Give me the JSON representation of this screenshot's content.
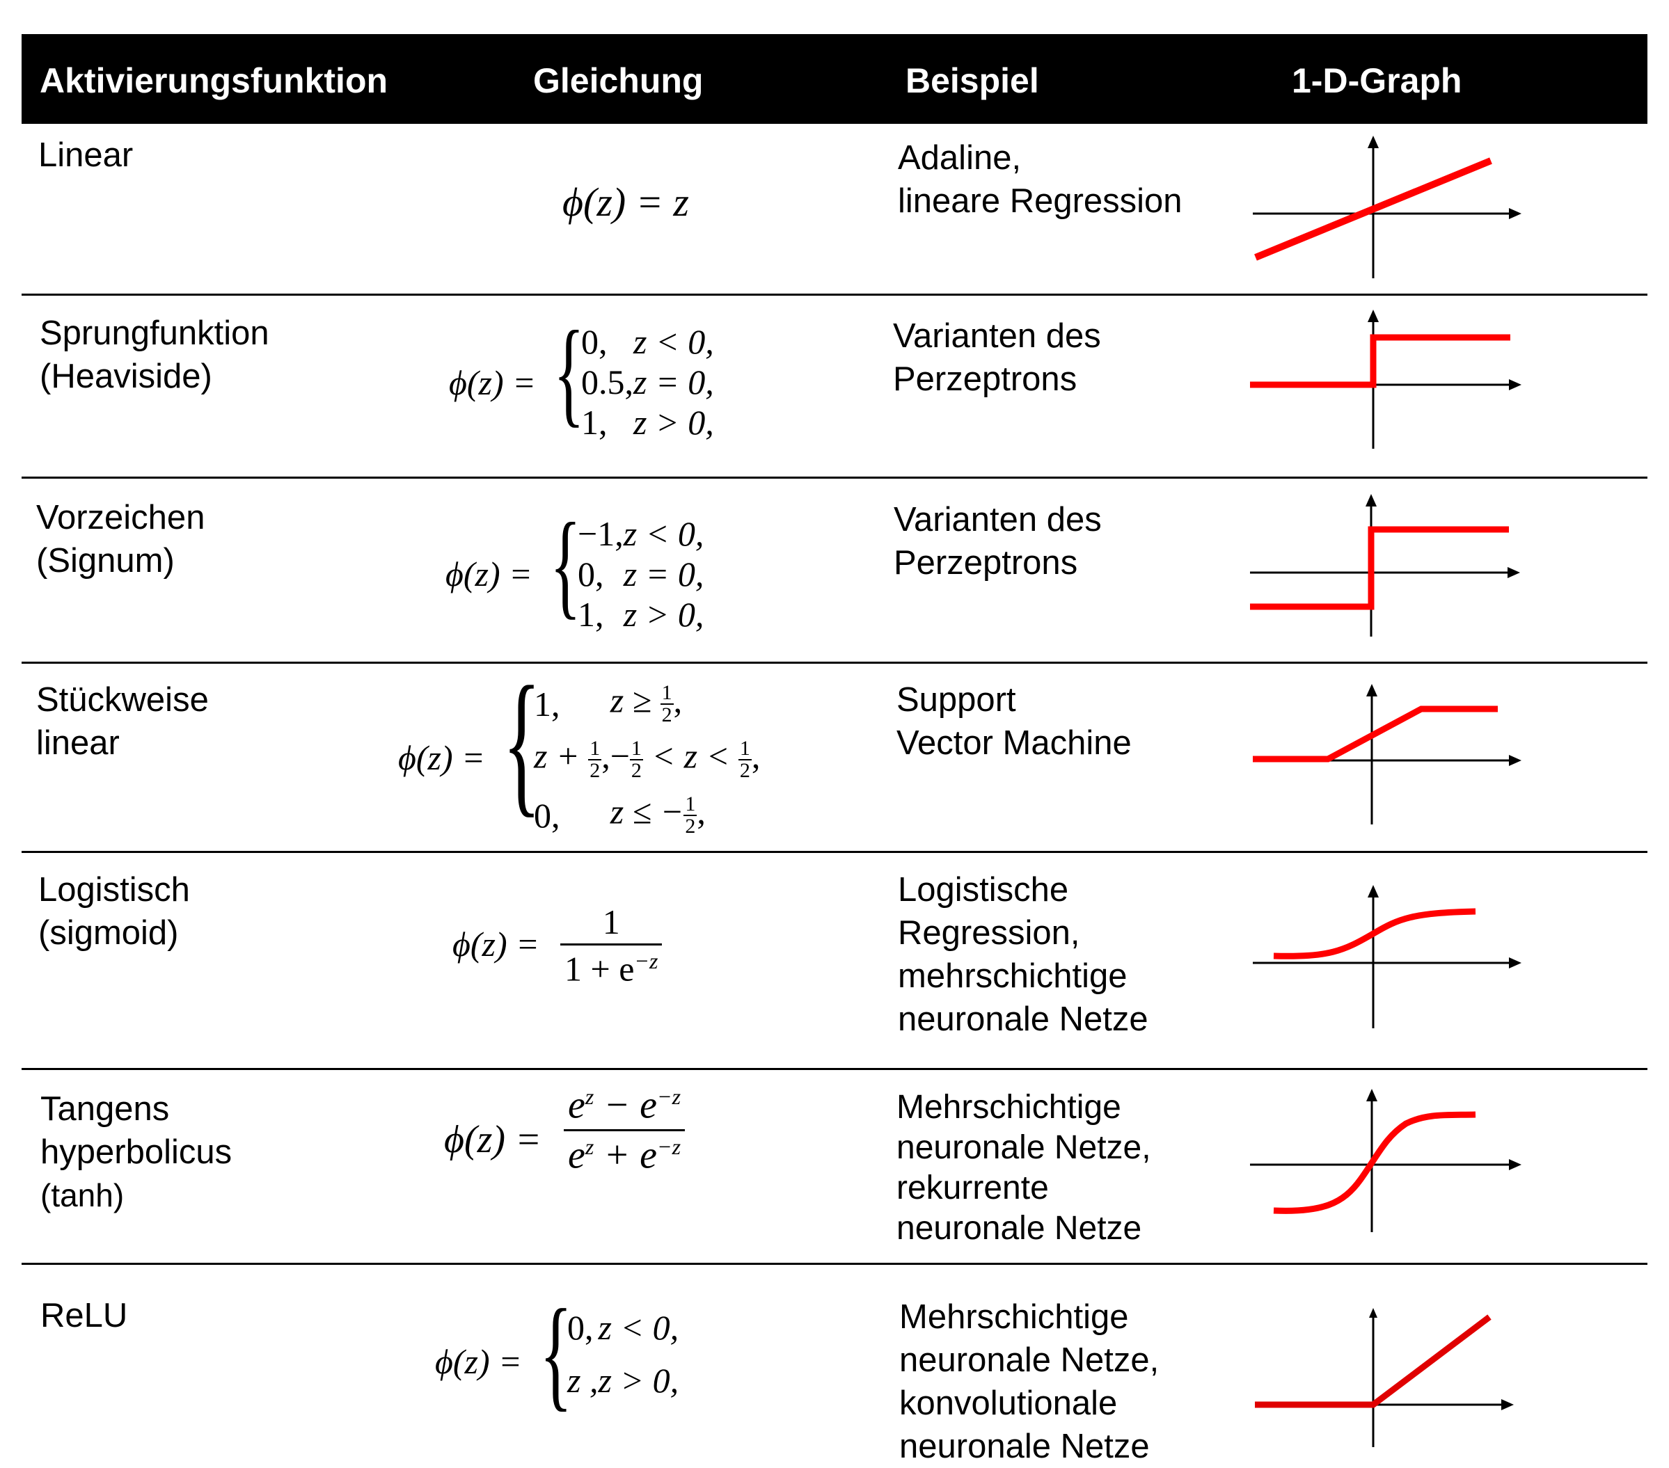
{
  "header": {
    "col_function": "Aktivierungsfunktion",
    "col_equation": "Gleichung",
    "col_example": "Beispiel",
    "col_graph": "1-D-Graph"
  },
  "rows": [
    {
      "name": [
        "Linear"
      ],
      "equation": {
        "lhs": "ϕ(z) = z"
      },
      "example": [
        "Adaline,",
        "lineare Regression"
      ],
      "graph": "linear-graph-icon"
    },
    {
      "name": [
        "Sprungfunktion",
        "(Heaviside)"
      ],
      "equation": {
        "lhs": "ϕ(z) =",
        "cases": [
          {
            "value": "0,",
            "cond": "z < 0,"
          },
          {
            "value": "0.5,",
            "cond": "z = 0,"
          },
          {
            "value": "1,",
            "cond": "z > 0,"
          }
        ]
      },
      "example": [
        "Varianten des",
        "Perzeptrons"
      ],
      "graph": "step-graph-icon"
    },
    {
      "name": [
        "Vorzeichen",
        "(Signum)"
      ],
      "equation": {
        "lhs": "ϕ(z) =",
        "cases": [
          {
            "value": "−1,",
            "cond": "z < 0,"
          },
          {
            "value": "0,",
            "cond": "z = 0,"
          },
          {
            "value": "1,",
            "cond": "z > 0,"
          }
        ]
      },
      "example": [
        "Varianten des",
        "Perzeptrons"
      ],
      "graph": "sign-graph-icon"
    },
    {
      "name": [
        "Stückweise",
        "linear"
      ],
      "equation": {
        "lhs": "ϕ(z) =",
        "cases": [
          {
            "value": "1,",
            "cond_pre": "z ≥",
            "cond_frac": [
              "1",
              "2"
            ],
            "cond_post": ","
          },
          {
            "value_pre": "z +",
            "value_frac": [
              "1",
              "2"
            ],
            "value_post": ",",
            "cond_pre": "−",
            "cond_frac": [
              "1",
              "2"
            ],
            "cond_mid": "< z <",
            "cond_frac2": [
              "1",
              "2"
            ],
            "cond_post": ","
          },
          {
            "value": "0,",
            "cond_pre": "z ≤ −",
            "cond_frac": [
              "1",
              "2"
            ],
            "cond_post": ","
          }
        ]
      },
      "example": [
        "Support",
        "Vector Machine"
      ],
      "graph": "piecewise-linear-graph-icon"
    },
    {
      "name": [
        "Logistisch",
        "(sigmoid)"
      ],
      "equation": {
        "lhs": "ϕ(z) =",
        "num": "1",
        "den_base": "1 + e",
        "den_exp": "−z"
      },
      "example": [
        "Logistische",
        "Regression,",
        "mehrschichtige",
        "neuronale Netze"
      ],
      "graph": "sigmoid-graph-icon"
    },
    {
      "name": [
        "Tangens",
        "hyperbolicus",
        "(tanh)"
      ],
      "equation": {
        "lhs": "ϕ(z) =",
        "num_a": "e",
        "num_a_exp": "z",
        "num_op": " − e",
        "num_b_exp": "−z",
        "den_a": "e",
        "den_a_exp": "z",
        "den_op": " + e",
        "den_b_exp": "−z"
      },
      "example": [
        "Mehrschichtige",
        "neuronale Netze,",
        "rekurrente",
        "neuronale Netze"
      ],
      "graph": "tanh-graph-icon"
    },
    {
      "name": [
        "ReLU"
      ],
      "equation": {
        "lhs": "ϕ(z) =",
        "cases": [
          {
            "value": "0,",
            "cond": "z < 0,"
          },
          {
            "value": "z ,",
            "cond": "z > 0,"
          }
        ]
      },
      "example": [
        "Mehrschichtige",
        "neuronale Netze,",
        "konvolutionale",
        "neuronale Netze"
      ],
      "graph": "relu-graph-icon"
    }
  ],
  "colors": {
    "curve": "#ff0000",
    "axis": "#000000",
    "header_bg": "#000000",
    "header_text": "#ffffff"
  }
}
